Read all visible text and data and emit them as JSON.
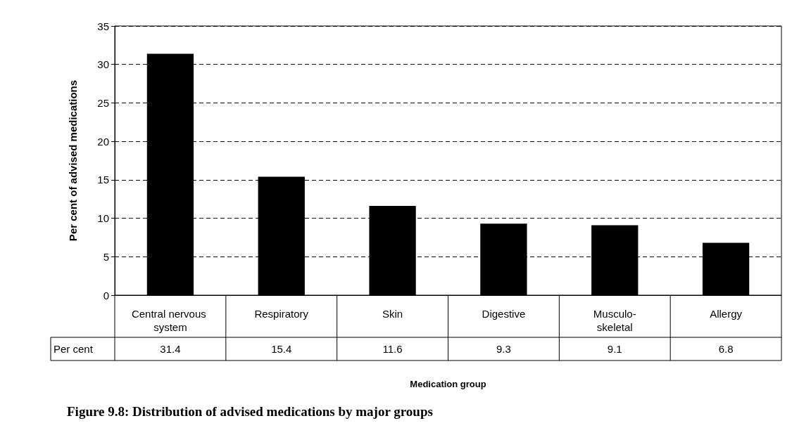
{
  "chart_data": {
    "type": "bar",
    "title": "Figure 9.8: Distribution of advised medications by major groups",
    "xlabel": "Medication group",
    "ylabel": "Per cent of advised medications",
    "categories": [
      "Central nervous system",
      "Respiratory",
      "Skin",
      "Digestive",
      "Musculo-skeletal",
      "Allergy"
    ],
    "series": [
      {
        "name": "Per cent",
        "color": "#000000",
        "values": [
          31.4,
          15.4,
          11.6,
          9.3,
          9.1,
          6.8
        ]
      }
    ],
    "ylim": [
      0,
      35
    ],
    "yticks": [
      0,
      5,
      10,
      15,
      20,
      25,
      30,
      35
    ],
    "grid": "y",
    "legend": "bottom left",
    "data_labels": true
  }
}
